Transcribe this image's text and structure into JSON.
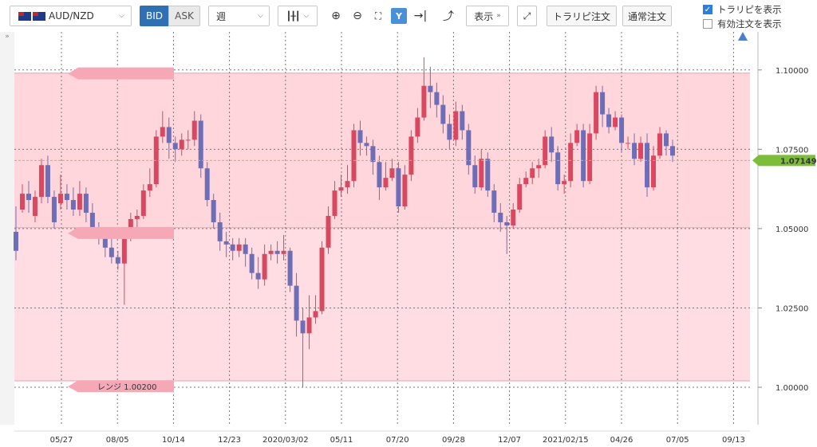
{
  "toolbar": {
    "pair_label": "AUD/NZD",
    "bid_label": "BID",
    "ask_label": "ASK",
    "timeframe": "週",
    "display_label": "表示",
    "trail_order_label": "トラリピ注文",
    "normal_order_label": "通常注文",
    "show_trail_label": "トラリピを表示",
    "show_active_label": "有効注文を表示",
    "show_trail_checked": true,
    "show_active_checked": false,
    "icons": [
      "candlestick-icon",
      "zoom-in-icon",
      "zoom-out-icon",
      "fit-icon",
      "y-scale-icon",
      "jump-latest-icon",
      "indicator-icon",
      "expand-icon"
    ]
  },
  "range_labels": {
    "bottom": "レンジ 1.00200"
  },
  "current_price_label": "1.07149",
  "colors": {
    "up": "#d9485f",
    "down": "#6e6eb8",
    "range_band": "#ffdde2",
    "price_tag": "#7dbd3c",
    "bid_active": "#2f6fb4"
  },
  "chart_data": {
    "type": "candlestick",
    "timeframe": "weekly",
    "ylim": [
      0.9882,
      1.112
    ],
    "yticks": [
      "1.10000",
      "1.07500",
      "1.05000",
      "1.02500",
      "1.00000"
    ],
    "xticks": [
      "05/27",
      "08/05",
      "10/14",
      "12/23",
      "2020/03/02",
      "05/11",
      "07/20",
      "09/28",
      "12/07",
      "2021/02/15",
      "04/26",
      "07/05",
      "09/13"
    ],
    "range_band": {
      "upper": 1.099,
      "lower": 1.002,
      "inner_upper": 1.099,
      "inner_lower": 1.0503
    },
    "current_price": 1.07149,
    "candles": [
      [
        1.049,
        1.043,
        1.057,
        1.04
      ],
      [
        1.056,
        1.061,
        1.064,
        1.055
      ],
      [
        1.061,
        1.059,
        1.065,
        1.055
      ],
      [
        1.054,
        1.06,
        1.062,
        1.052
      ],
      [
        1.06,
        1.07,
        1.072,
        1.058
      ],
      [
        1.07,
        1.06,
        1.073,
        1.058
      ],
      [
        1.06,
        1.052,
        1.062,
        1.05
      ],
      [
        1.058,
        1.061,
        1.067,
        1.056
      ],
      [
        1.061,
        1.059,
        1.064,
        1.056
      ],
      [
        1.059,
        1.056,
        1.063,
        1.054
      ],
      [
        1.056,
        1.061,
        1.065,
        1.054
      ],
      [
        1.061,
        1.055,
        1.063,
        1.052
      ],
      [
        1.055,
        1.049,
        1.058,
        1.047
      ],
      [
        1.049,
        1.047,
        1.052,
        1.045
      ],
      [
        1.047,
        1.044,
        1.049,
        1.041
      ],
      [
        1.044,
        1.041,
        1.047,
        1.039
      ],
      [
        1.041,
        1.039,
        1.043,
        1.037
      ],
      [
        1.039,
        1.047,
        1.049,
        1.026
      ],
      [
        1.047,
        1.053,
        1.055,
        1.046
      ],
      [
        1.053,
        1.054,
        1.056,
        1.05
      ],
      [
        1.054,
        1.062,
        1.064,
        1.053
      ],
      [
        1.062,
        1.064,
        1.069,
        1.06
      ],
      [
        1.064,
        1.079,
        1.081,
        1.063
      ],
      [
        1.079,
        1.082,
        1.087,
        1.077
      ],
      [
        1.082,
        1.077,
        1.085,
        1.072
      ],
      [
        1.077,
        1.075,
        1.079,
        1.071
      ],
      [
        1.075,
        1.078,
        1.08,
        1.073
      ],
      [
        1.078,
        1.078,
        1.081,
        1.075
      ],
      [
        1.078,
        1.084,
        1.087,
        1.076
      ],
      [
        1.084,
        1.069,
        1.086,
        1.066
      ],
      [
        1.069,
        1.059,
        1.071,
        1.057
      ],
      [
        1.059,
        1.052,
        1.061,
        1.05
      ],
      [
        1.052,
        1.046,
        1.055,
        1.043
      ],
      [
        1.046,
        1.045,
        1.049,
        1.041
      ],
      [
        1.045,
        1.043,
        1.047,
        1.04
      ],
      [
        1.043,
        1.045,
        1.047,
        1.041
      ],
      [
        1.045,
        1.042,
        1.047,
        1.038
      ],
      [
        1.042,
        1.036,
        1.044,
        1.034
      ],
      [
        1.036,
        1.034,
        1.041,
        1.031
      ],
      [
        1.034,
        1.042,
        1.045,
        1.032
      ],
      [
        1.042,
        1.043,
        1.045,
        1.04
      ],
      [
        1.043,
        1.042,
        1.046,
        1.039
      ],
      [
        1.042,
        1.043,
        1.048,
        1.04
      ],
      [
        1.043,
        1.032,
        1.044,
        1.03
      ],
      [
        1.032,
        1.021,
        1.036,
        1.016
      ],
      [
        1.021,
        1.017,
        1.025,
        1.0
      ],
      [
        1.017,
        1.022,
        1.029,
        1.012
      ],
      [
        1.022,
        1.024,
        1.029,
        1.02
      ],
      [
        1.024,
        1.044,
        1.046,
        1.023
      ],
      [
        1.044,
        1.054,
        1.057,
        1.042
      ],
      [
        1.054,
        1.062,
        1.065,
        1.053
      ],
      [
        1.062,
        1.063,
        1.067,
        1.06
      ],
      [
        1.063,
        1.065,
        1.07,
        1.061
      ],
      [
        1.065,
        1.081,
        1.083,
        1.063
      ],
      [
        1.081,
        1.077,
        1.084,
        1.073
      ],
      [
        1.077,
        1.076,
        1.079,
        1.073
      ],
      [
        1.076,
        1.071,
        1.078,
        1.067
      ],
      [
        1.071,
        1.063,
        1.073,
        1.059
      ],
      [
        1.063,
        1.066,
        1.071,
        1.062
      ],
      [
        1.066,
        1.069,
        1.072,
        1.065
      ],
      [
        1.069,
        1.057,
        1.071,
        1.055
      ],
      [
        1.057,
        1.067,
        1.07,
        1.056
      ],
      [
        1.067,
        1.079,
        1.081,
        1.065
      ],
      [
        1.079,
        1.085,
        1.088,
        1.077
      ],
      [
        1.085,
        1.095,
        1.104,
        1.084
      ],
      [
        1.095,
        1.093,
        1.101,
        1.088
      ],
      [
        1.093,
        1.089,
        1.096,
        1.085
      ],
      [
        1.089,
        1.083,
        1.092,
        1.08
      ],
      [
        1.083,
        1.078,
        1.086,
        1.075
      ],
      [
        1.078,
        1.087,
        1.09,
        1.076
      ],
      [
        1.087,
        1.081,
        1.089,
        1.078
      ],
      [
        1.081,
        1.07,
        1.083,
        1.067
      ],
      [
        1.07,
        1.063,
        1.073,
        1.061
      ],
      [
        1.063,
        1.072,
        1.075,
        1.062
      ],
      [
        1.072,
        1.062,
        1.074,
        1.06
      ],
      [
        1.062,
        1.055,
        1.064,
        1.052
      ],
      [
        1.055,
        1.052,
        1.058,
        1.049
      ],
      [
        1.052,
        1.051,
        1.054,
        1.042
      ],
      [
        1.051,
        1.056,
        1.058,
        1.05
      ],
      [
        1.056,
        1.064,
        1.066,
        1.055
      ],
      [
        1.064,
        1.066,
        1.068,
        1.063
      ],
      [
        1.066,
        1.069,
        1.071,
        1.064
      ],
      [
        1.069,
        1.07,
        1.072,
        1.066
      ],
      [
        1.07,
        1.079,
        1.081,
        1.069
      ],
      [
        1.079,
        1.074,
        1.082,
        1.071
      ],
      [
        1.074,
        1.064,
        1.076,
        1.062
      ],
      [
        1.064,
        1.065,
        1.067,
        1.061
      ],
      [
        1.065,
        1.077,
        1.08,
        1.063
      ],
      [
        1.077,
        1.081,
        1.083,
        1.076
      ],
      [
        1.081,
        1.065,
        1.083,
        1.063
      ],
      [
        1.065,
        1.08,
        1.083,
        1.064
      ],
      [
        1.08,
        1.093,
        1.095,
        1.078
      ],
      [
        1.093,
        1.086,
        1.095,
        1.082
      ],
      [
        1.086,
        1.082,
        1.088,
        1.08
      ],
      [
        1.082,
        1.085,
        1.087,
        1.081
      ],
      [
        1.085,
        1.077,
        1.086,
        1.074
      ],
      [
        1.077,
        1.077,
        1.079,
        1.075
      ],
      [
        1.077,
        1.072,
        1.08,
        1.07
      ],
      [
        1.072,
        1.077,
        1.079,
        1.071
      ],
      [
        1.077,
        1.063,
        1.08,
        1.06
      ],
      [
        1.063,
        1.073,
        1.076,
        1.062
      ],
      [
        1.073,
        1.08,
        1.082,
        1.072
      ],
      [
        1.08,
        1.076,
        1.081,
        1.073
      ],
      [
        1.076,
        1.073,
        1.078,
        1.071
      ]
    ]
  }
}
